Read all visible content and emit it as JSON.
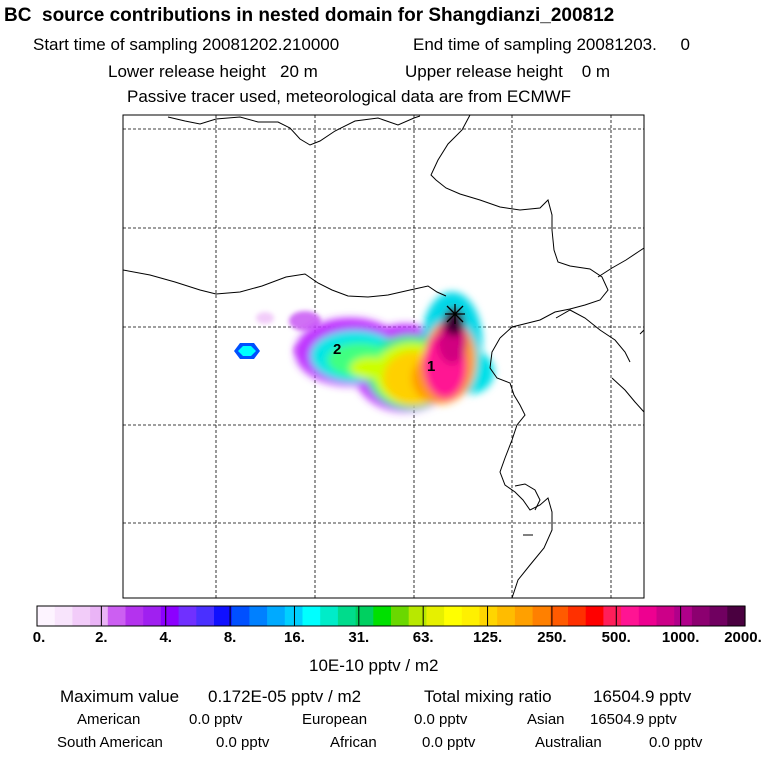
{
  "header": {
    "title": "BC  source contributions in nested domain for Shangdianzi_200812",
    "start_time": "Start time of sampling 20081202.210000",
    "end_time": "End time of sampling 20081203.     0",
    "lower_release": "Lower release height   20 m",
    "upper_release": "Upper release height    0 m",
    "tracer_note": "Passive tracer used, meteorological data are from ECMWF"
  },
  "map": {
    "labels": [
      "2",
      "1"
    ],
    "receptor_marker": "Shangdianzi",
    "plume_colors": [
      "#e6b3ff",
      "#bf33ff",
      "#00e6e6",
      "#40ff80",
      "#ccff00",
      "#ffd000",
      "#ff9900",
      "#ff1493",
      "#d10080",
      "#3a0030"
    ]
  },
  "colorbar": {
    "segments": [
      "#fdf4ff",
      "#f8e4fc",
      "#f2ccf9",
      "#eab4f6",
      "#cc5ff2",
      "#b433ee",
      "#a020f0",
      "#8c00ff",
      "#7030ff",
      "#4a30ff",
      "#1010ff",
      "#0050ff",
      "#0080ff",
      "#00aaff",
      "#00cfff",
      "#00ffff",
      "#00ecc8",
      "#00dc8c",
      "#00d060",
      "#00e000",
      "#6ad800",
      "#b8e800",
      "#e6f000",
      "#ffff00",
      "#fff000",
      "#ffd500",
      "#ffbc00",
      "#ffa000",
      "#ff8000",
      "#ff5a00",
      "#ff3000",
      "#ff0000",
      "#ff1e5a",
      "#ff1493",
      "#ee0090",
      "#cc0088",
      "#b0008a",
      "#8c0070",
      "#700060",
      "#4a0040"
    ],
    "ticks": [
      "0.",
      "2.",
      "4.",
      "8.",
      "16.",
      "31.",
      "63.",
      "125.",
      "250.",
      "500.",
      "1000.",
      "2000."
    ],
    "unit_label": "10E-10 pptv / m2"
  },
  "footer": {
    "max_label": "Maximum value",
    "max_value": "0.172E-05 pptv / m2",
    "total_label": "Total mixing ratio",
    "total_value": "16504.9 pptv",
    "regions": [
      {
        "name": "American",
        "value": "0.0 pptv"
      },
      {
        "name": "European",
        "value": "0.0 pptv"
      },
      {
        "name": "Asian",
        "value": "16504.9 pptv"
      },
      {
        "name": "South American",
        "value": "0.0 pptv"
      },
      {
        "name": "African",
        "value": "0.0 pptv"
      },
      {
        "name": "Australian",
        "value": "0.0 pptv"
      }
    ]
  }
}
